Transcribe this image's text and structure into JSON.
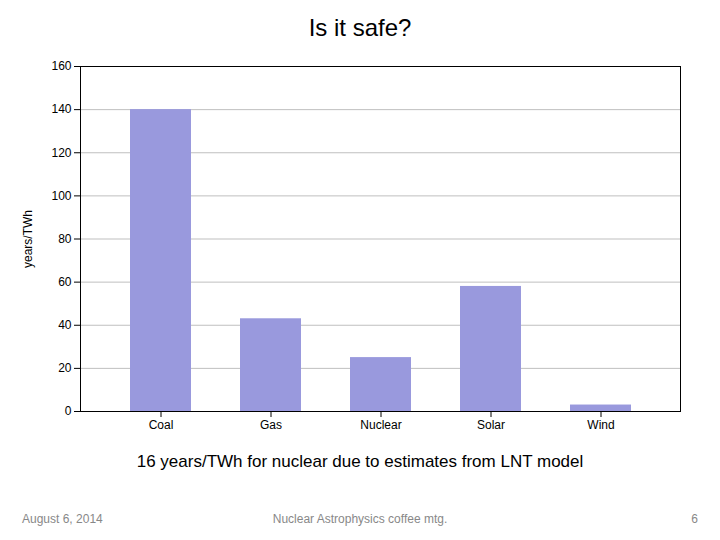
{
  "chart_data": {
    "type": "bar",
    "title": "Is it safe?",
    "subtitle": "16 years/TWh for nuclear due to estimates from LNT model",
    "annotations": [
      "August 6, 2014",
      "Nuclear Astrophysics coffee mtg.",
      "6"
    ],
    "categories": [
      "Coal",
      "Gas",
      "Nuclear",
      "Solar",
      "Wind"
    ],
    "values": [
      140,
      43,
      25,
      58,
      3
    ],
    "color": "#9999dd",
    "ylabel": "years/TWh",
    "ylim": [
      0,
      160
    ],
    "yticks": [
      0,
      20,
      40,
      60,
      80,
      100,
      120,
      140,
      160
    ],
    "grid": true
  }
}
